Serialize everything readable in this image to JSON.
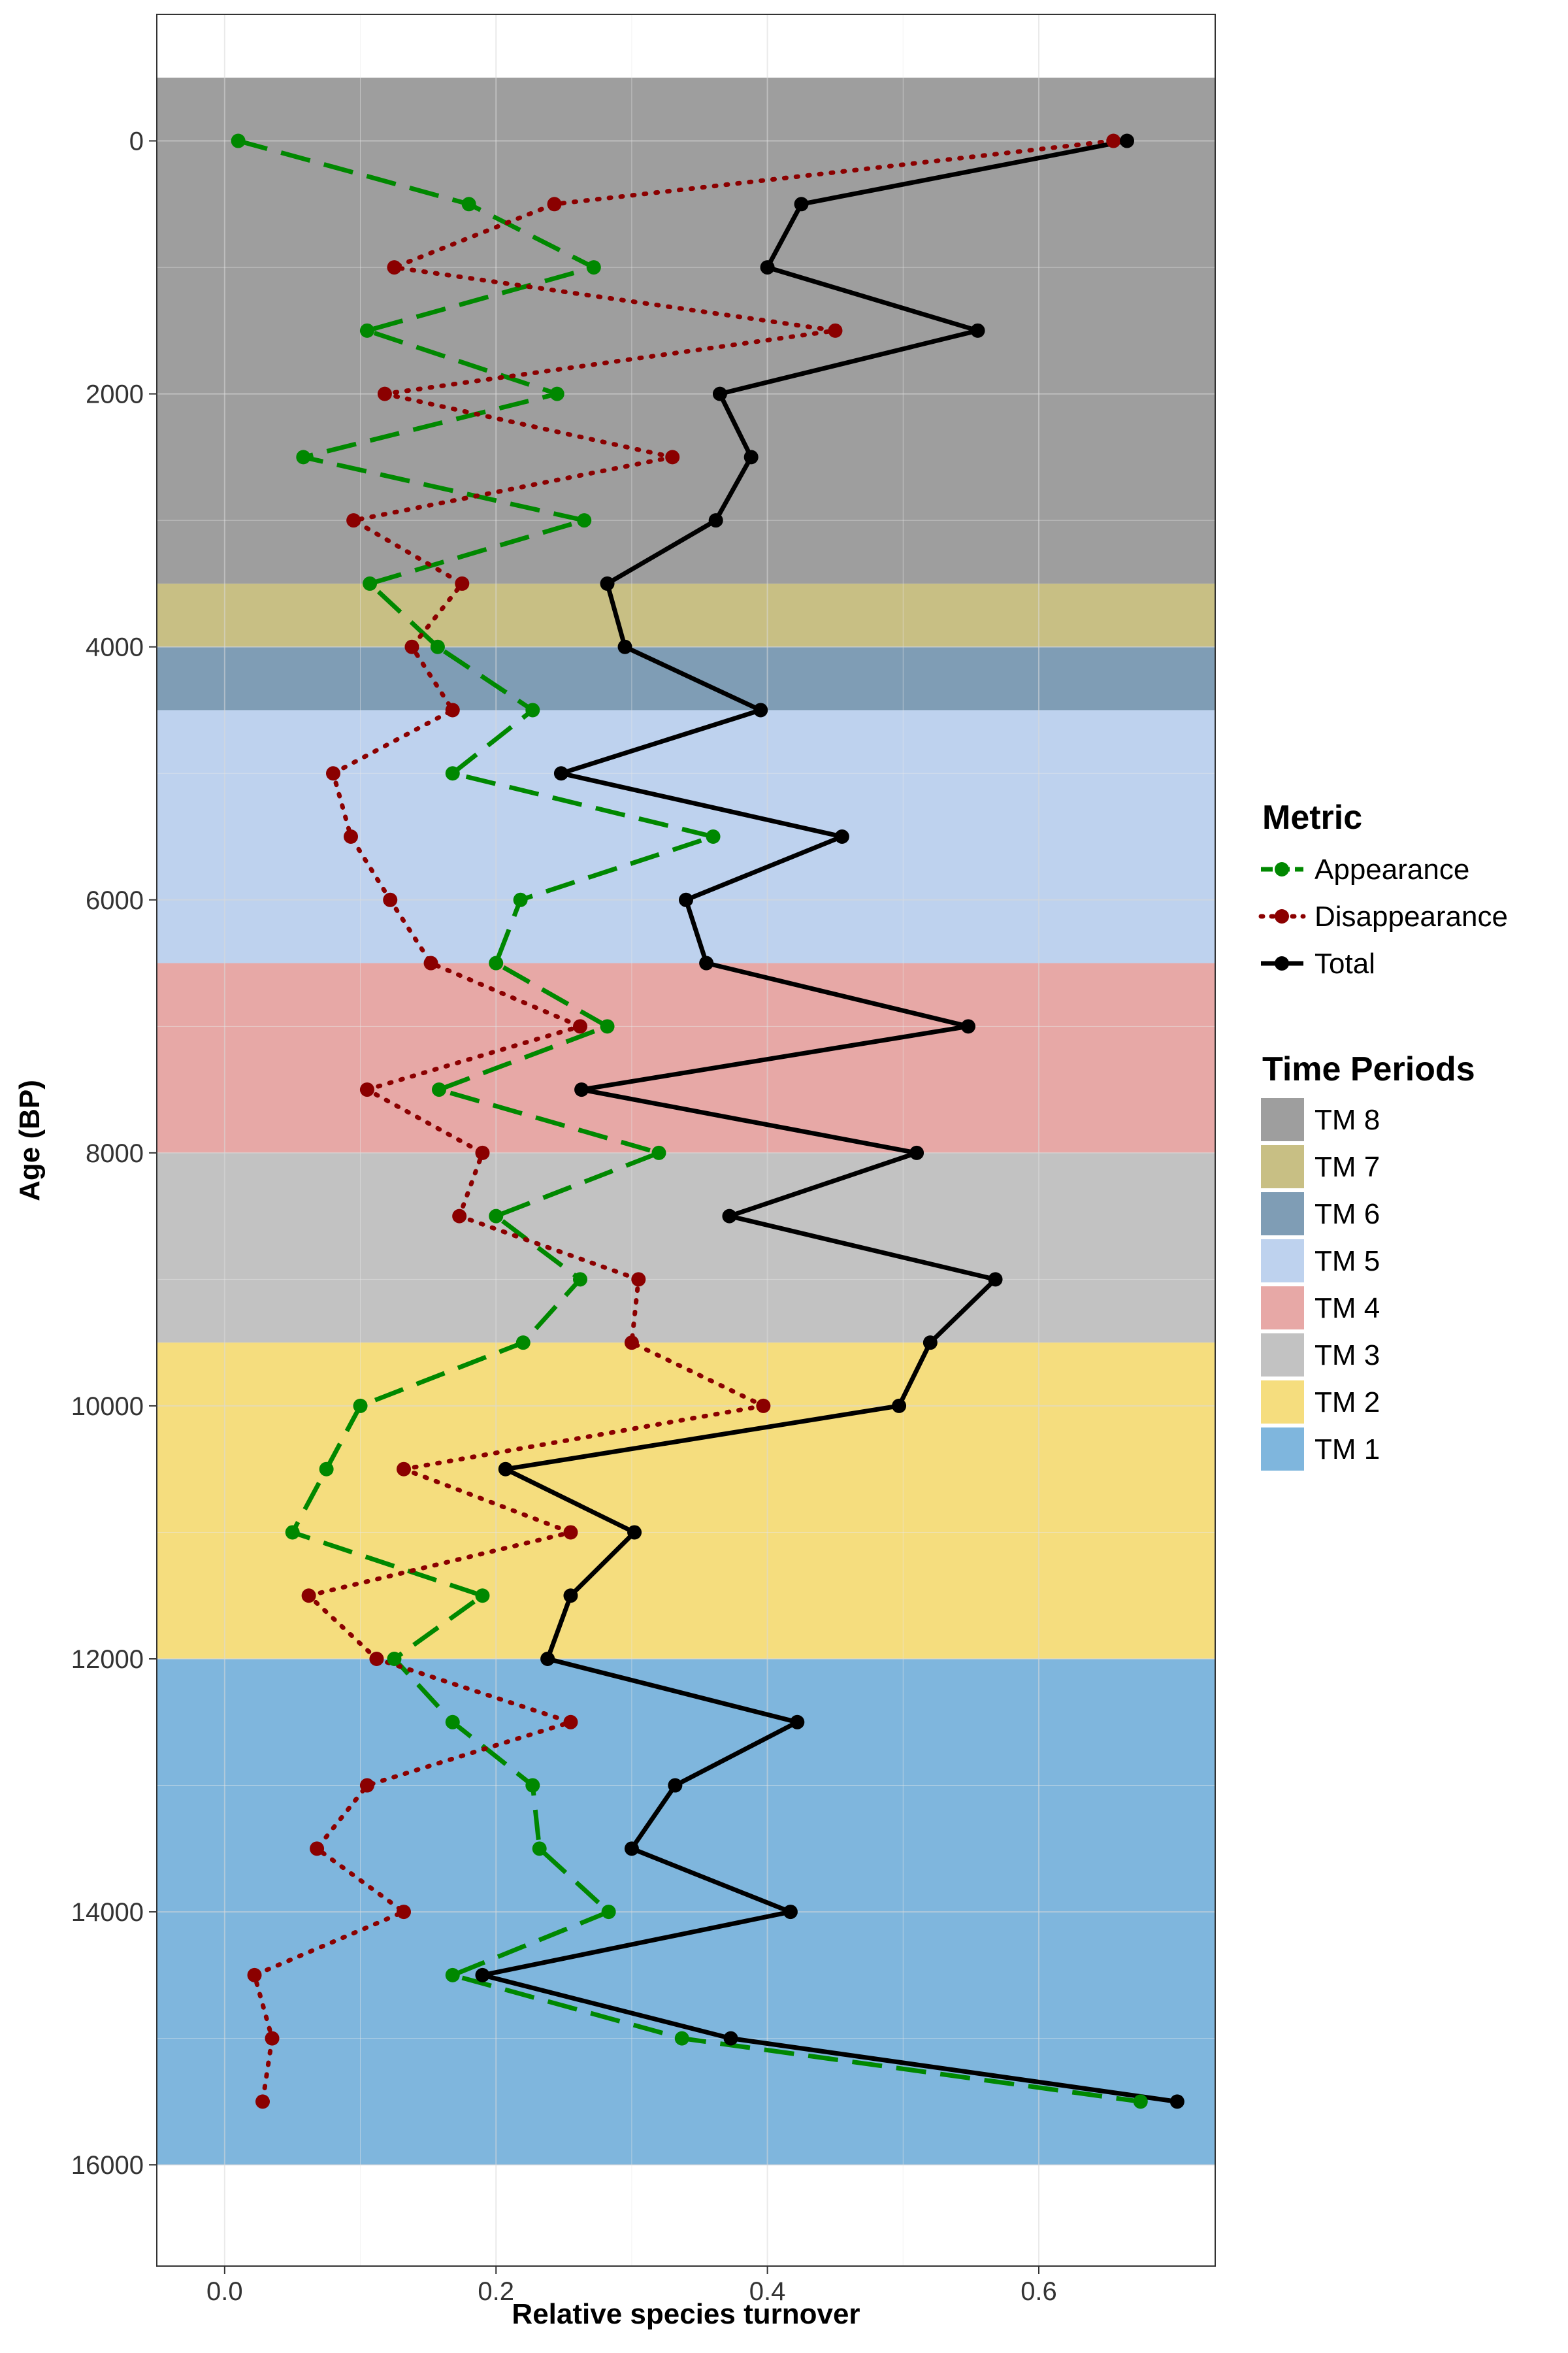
{
  "chart_data": {
    "type": "line",
    "xlabel": "Relative species turnover",
    "ylabel": "Age (BP)",
    "xlim": [
      -0.05,
      0.73
    ],
    "ylim": [
      -1000,
      16800
    ],
    "y_reversed": true,
    "x_ticks": [
      0.0,
      0.2,
      0.4,
      0.6
    ],
    "x_tick_labels": [
      "0.0",
      "0.2",
      "0.4",
      "0.6"
    ],
    "y_ticks": [
      0,
      2000,
      4000,
      6000,
      8000,
      10000,
      12000,
      14000,
      16000
    ],
    "y_tick_labels": [
      "0",
      "2000",
      "4000",
      "6000",
      "8000",
      "10000",
      "12000",
      "14000",
      "16000"
    ],
    "grid": true,
    "periods_title": "Time Periods",
    "periods": [
      {
        "name": "TM 8",
        "start": -500,
        "end": 3500,
        "color": "#9e9e9e"
      },
      {
        "name": "TM 7",
        "start": 3500,
        "end": 4000,
        "color": "#c8bf84"
      },
      {
        "name": "TM 6",
        "start": 4000,
        "end": 4500,
        "color": "#7f9db5"
      },
      {
        "name": "TM 5",
        "start": 4500,
        "end": 6500,
        "color": "#bed2ee"
      },
      {
        "name": "TM 4",
        "start": 6500,
        "end": 8000,
        "color": "#e7a8a6"
      },
      {
        "name": "TM 3",
        "start": 8000,
        "end": 9500,
        "color": "#c2c2c2"
      },
      {
        "name": "TM 2",
        "start": 9500,
        "end": 12000,
        "color": "#f5dd7e"
      },
      {
        "name": "TM 1",
        "start": 12000,
        "end": 16000,
        "color": "#7fb6dd"
      }
    ],
    "legend_title": "Metric",
    "series": [
      {
        "name": "Appearance",
        "color": "#008800",
        "dash": "long-dash",
        "ages": [
          0,
          500,
          1000,
          1500,
          2000,
          2500,
          3000,
          3500,
          4000,
          4500,
          5000,
          5500,
          6000,
          6500,
          7000,
          7500,
          8000,
          8500,
          9000,
          9500,
          10000,
          10500,
          11000,
          11500,
          12000,
          12500,
          13000,
          13500,
          14000,
          14500,
          15000,
          15500
        ],
        "values": [
          0.01,
          0.18,
          0.272,
          0.105,
          0.245,
          0.058,
          0.265,
          0.107,
          0.157,
          0.227,
          0.168,
          0.36,
          0.218,
          0.2,
          0.282,
          0.158,
          0.32,
          0.2,
          0.262,
          0.22,
          0.1,
          0.075,
          0.05,
          0.19,
          0.125,
          0.168,
          0.227,
          0.232,
          0.283,
          0.168,
          0.337,
          0.675
        ]
      },
      {
        "name": "Disappearance",
        "color": "#8b0000",
        "dash": "dotted",
        "ages": [
          0,
          500,
          1000,
          1500,
          2000,
          2500,
          3000,
          3500,
          4000,
          4500,
          5000,
          5500,
          6000,
          6500,
          7000,
          7500,
          8000,
          8500,
          9000,
          9500,
          10000,
          10500,
          11000,
          11500,
          12000,
          12500,
          13000,
          13500,
          14000,
          14500,
          15000,
          15500
        ],
        "values": [
          0.655,
          0.243,
          0.125,
          0.45,
          0.118,
          0.33,
          0.095,
          0.175,
          0.138,
          0.168,
          0.08,
          0.093,
          0.122,
          0.152,
          0.262,
          0.105,
          0.19,
          0.173,
          0.305,
          0.3,
          0.397,
          0.132,
          0.255,
          0.062,
          0.112,
          0.255,
          0.105,
          0.068,
          0.132,
          0.022,
          0.035,
          0.028
        ]
      },
      {
        "name": "Total",
        "color": "#000000",
        "dash": "solid",
        "ages": [
          0,
          500,
          1000,
          1500,
          2000,
          2500,
          3000,
          3500,
          4000,
          4500,
          5000,
          5500,
          6000,
          6500,
          7000,
          7500,
          8000,
          8500,
          9000,
          9500,
          10000,
          10500,
          11000,
          11500,
          12000,
          12500,
          13000,
          13500,
          14000,
          14500,
          15000,
          15500
        ],
        "values": [
          0.665,
          0.425,
          0.4,
          0.555,
          0.365,
          0.388,
          0.362,
          0.282,
          0.295,
          0.395,
          0.248,
          0.455,
          0.34,
          0.355,
          0.548,
          0.263,
          0.51,
          0.372,
          0.568,
          0.52,
          0.497,
          0.207,
          0.302,
          0.255,
          0.238,
          0.422,
          0.332,
          0.3,
          0.417,
          0.19,
          0.373,
          0.702
        ]
      }
    ]
  }
}
